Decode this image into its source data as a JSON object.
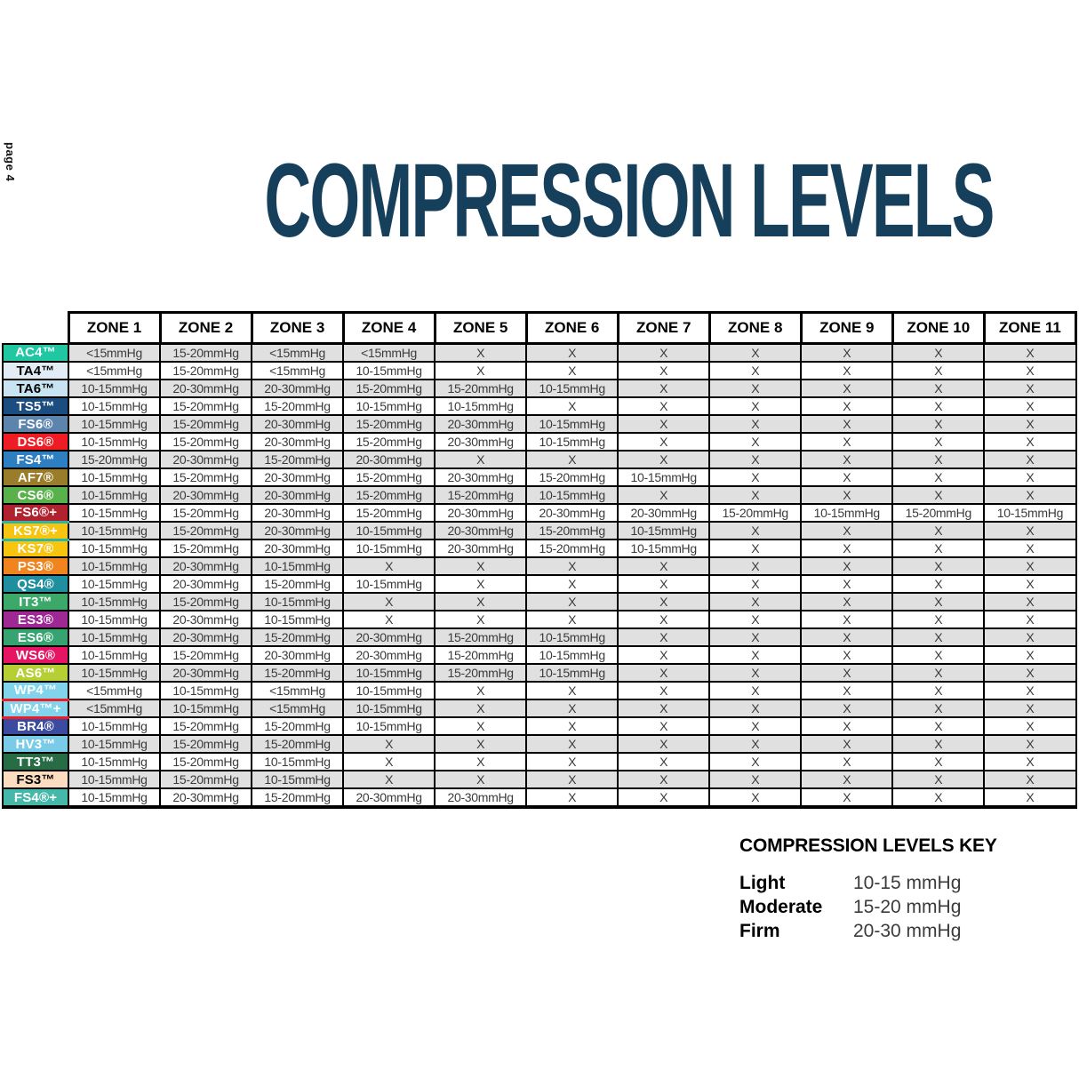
{
  "page_label": "page 4",
  "title": "COMPRESSION LEVELS",
  "colors": {
    "title": "#163F5C",
    "table_border": "#000000",
    "row_shade": "#E0E0E0",
    "cell_text": "#3B3B3B",
    "ks7plus_accent": "#2BB7A6",
    "wp4plus_accent": "#EE1C24"
  },
  "table": {
    "zone_headers": [
      "ZONE 1",
      "ZONE 2",
      "ZONE 3",
      "ZONE 4",
      "ZONE 5",
      "ZONE 6",
      "ZONE 7",
      "ZONE 8",
      "ZONE 9",
      "ZONE 10",
      "ZONE 11"
    ],
    "rows": [
      {
        "label": "AC4™",
        "bg": "#1FC7A3",
        "fg": "#FFFFFF",
        "accent": null,
        "values": [
          "<15mmHg",
          "15-20mmHg",
          "<15mmHg",
          "<15mmHg",
          "X",
          "X",
          "X",
          "X",
          "X",
          "X",
          "X"
        ]
      },
      {
        "label": "TA4™",
        "bg": "#E2ECF4",
        "fg": "#000000",
        "accent": null,
        "values": [
          "<15mmHg",
          "15-20mmHg",
          "<15mmHg",
          "10-15mmHg",
          "X",
          "X",
          "X",
          "X",
          "X",
          "X",
          "X"
        ]
      },
      {
        "label": "TA6™",
        "bg": "#C8E3F2",
        "fg": "#000000",
        "accent": null,
        "values": [
          "10-15mmHg",
          "20-30mmHg",
          "20-30mmHg",
          "15-20mmHg",
          "15-20mmHg",
          "10-15mmHg",
          "X",
          "X",
          "X",
          "X",
          "X"
        ]
      },
      {
        "label": "TS5™",
        "bg": "#1C4D80",
        "fg": "#FFFFFF",
        "accent": null,
        "values": [
          "10-15mmHg",
          "15-20mmHg",
          "15-20mmHg",
          "10-15mmHg",
          "10-15mmHg",
          "X",
          "X",
          "X",
          "X",
          "X",
          "X"
        ]
      },
      {
        "label": "FS6®",
        "bg": "#5C84AD",
        "fg": "#FFFFFF",
        "accent": null,
        "values": [
          "10-15mmHg",
          "15-20mmHg",
          "20-30mmHg",
          "15-20mmHg",
          "20-30mmHg",
          "10-15mmHg",
          "X",
          "X",
          "X",
          "X",
          "X"
        ]
      },
      {
        "label": "DS6®",
        "bg": "#EE1C24",
        "fg": "#FFFFFF",
        "accent": null,
        "values": [
          "10-15mmHg",
          "15-20mmHg",
          "20-30mmHg",
          "15-20mmHg",
          "20-30mmHg",
          "10-15mmHg",
          "X",
          "X",
          "X",
          "X",
          "X"
        ]
      },
      {
        "label": "FS4™",
        "bg": "#2E7FC2",
        "fg": "#FFFFFF",
        "accent": null,
        "values": [
          "15-20mmHg",
          "20-30mmHg",
          "15-20mmHg",
          "20-30mmHg",
          "X",
          "X",
          "X",
          "X",
          "X",
          "X",
          "X"
        ]
      },
      {
        "label": "AF7®",
        "bg": "#9A7D2A",
        "fg": "#FFFFFF",
        "accent": null,
        "values": [
          "10-15mmHg",
          "15-20mmHg",
          "20-30mmHg",
          "15-20mmHg",
          "20-30mmHg",
          "15-20mmHg",
          "10-15mmHg",
          "X",
          "X",
          "X",
          "X"
        ]
      },
      {
        "label": "CS6®",
        "bg": "#58B14B",
        "fg": "#FFFFFF",
        "accent": null,
        "values": [
          "10-15mmHg",
          "20-30mmHg",
          "20-30mmHg",
          "15-20mmHg",
          "15-20mmHg",
          "10-15mmHg",
          "X",
          "X",
          "X",
          "X",
          "X"
        ]
      },
      {
        "label": "FS6®+",
        "bg": "#B2212E",
        "fg": "#FFFFFF",
        "accent": null,
        "values": [
          "10-15mmHg",
          "15-20mmHg",
          "20-30mmHg",
          "15-20mmHg",
          "20-30mmHg",
          "20-30mmHg",
          "20-30mmHg",
          "15-20mmHg",
          "10-15mmHg",
          "15-20mmHg",
          "10-15mmHg"
        ]
      },
      {
        "label": "KS7®+",
        "bg": "#F7C40F",
        "fg": "#FFFFFF",
        "accent": "#2BB7A6",
        "values": [
          "10-15mmHg",
          "15-20mmHg",
          "20-30mmHg",
          "10-15mmHg",
          "20-30mmHg",
          "15-20mmHg",
          "10-15mmHg",
          "X",
          "X",
          "X",
          "X"
        ]
      },
      {
        "label": "KS7®",
        "bg": "#F7C40F",
        "fg": "#FFFFFF",
        "accent": null,
        "values": [
          "10-15mmHg",
          "15-20mmHg",
          "20-30mmHg",
          "10-15mmHg",
          "20-30mmHg",
          "15-20mmHg",
          "10-15mmHg",
          "X",
          "X",
          "X",
          "X"
        ]
      },
      {
        "label": "PS3®",
        "bg": "#F0841F",
        "fg": "#FFFFFF",
        "accent": null,
        "values": [
          "10-15mmHg",
          "20-30mmHg",
          "10-15mmHg",
          "X",
          "X",
          "X",
          "X",
          "X",
          "X",
          "X",
          "X"
        ]
      },
      {
        "label": "QS4®",
        "bg": "#1F8F9F",
        "fg": "#FFFFFF",
        "accent": null,
        "values": [
          "10-15mmHg",
          "20-30mmHg",
          "15-20mmHg",
          "10-15mmHg",
          "X",
          "X",
          "X",
          "X",
          "X",
          "X",
          "X"
        ]
      },
      {
        "label": "IT3™",
        "bg": "#3CA96B",
        "fg": "#FFFFFF",
        "accent": null,
        "values": [
          "10-15mmHg",
          "15-20mmHg",
          "10-15mmHg",
          "X",
          "X",
          "X",
          "X",
          "X",
          "X",
          "X",
          "X"
        ]
      },
      {
        "label": "ES3®",
        "bg": "#A02894",
        "fg": "#FFFFFF",
        "accent": null,
        "values": [
          "10-15mmHg",
          "20-30mmHg",
          "10-15mmHg",
          "X",
          "X",
          "X",
          "X",
          "X",
          "X",
          "X",
          "X"
        ]
      },
      {
        "label": "ES6®",
        "bg": "#36A470",
        "fg": "#FFFFFF",
        "accent": null,
        "values": [
          "10-15mmHg",
          "20-30mmHg",
          "15-20mmHg",
          "20-30mmHg",
          "15-20mmHg",
          "10-15mmHg",
          "X",
          "X",
          "X",
          "X",
          "X"
        ]
      },
      {
        "label": "WS6®",
        "bg": "#E51563",
        "fg": "#FFFFFF",
        "accent": null,
        "values": [
          "10-15mmHg",
          "15-20mmHg",
          "20-30mmHg",
          "20-30mmHg",
          "15-20mmHg",
          "10-15mmHg",
          "X",
          "X",
          "X",
          "X",
          "X"
        ]
      },
      {
        "label": "AS6™",
        "bg": "#B5CF34",
        "fg": "#FFFFFF",
        "accent": null,
        "values": [
          "10-15mmHg",
          "20-30mmHg",
          "15-20mmHg",
          "10-15mmHg",
          "15-20mmHg",
          "10-15mmHg",
          "X",
          "X",
          "X",
          "X",
          "X"
        ]
      },
      {
        "label": "WP4™",
        "bg": "#82D4EC",
        "fg": "#FFFFFF",
        "accent": null,
        "values": [
          "<15mmHg",
          "10-15mmHg",
          "<15mmHg",
          "10-15mmHg",
          "X",
          "X",
          "X",
          "X",
          "X",
          "X",
          "X"
        ]
      },
      {
        "label": "WP4™+",
        "bg": "#82D4EC",
        "fg": "#FFFFFF",
        "accent": "#EE1C24",
        "values": [
          "<15mmHg",
          "10-15mmHg",
          "<15mmHg",
          "10-15mmHg",
          "X",
          "X",
          "X",
          "X",
          "X",
          "X",
          "X"
        ]
      },
      {
        "label": "BR4®",
        "bg": "#3A4BA0",
        "fg": "#FFFFFF",
        "accent": null,
        "values": [
          "10-15mmHg",
          "15-20mmHg",
          "15-20mmHg",
          "10-15mmHg",
          "X",
          "X",
          "X",
          "X",
          "X",
          "X",
          "X"
        ]
      },
      {
        "label": "HV3™",
        "bg": "#79CBE8",
        "fg": "#FFFFFF",
        "accent": null,
        "values": [
          "10-15mmHg",
          "15-20mmHg",
          "15-20mmHg",
          "X",
          "X",
          "X",
          "X",
          "X",
          "X",
          "X",
          "X"
        ]
      },
      {
        "label": "TT3™",
        "bg": "#276C44",
        "fg": "#FFFFFF",
        "accent": null,
        "values": [
          "10-15mmHg",
          "15-20mmHg",
          "10-15mmHg",
          "X",
          "X",
          "X",
          "X",
          "X",
          "X",
          "X",
          "X"
        ]
      },
      {
        "label": "FS3™",
        "bg": "#FBDCC1",
        "fg": "#000000",
        "accent": null,
        "values": [
          "10-15mmHg",
          "15-20mmHg",
          "10-15mmHg",
          "X",
          "X",
          "X",
          "X",
          "X",
          "X",
          "X",
          "X"
        ]
      },
      {
        "label": "FS4®+",
        "bg": "#45B8A9",
        "fg": "#FFFFFF",
        "accent": null,
        "values": [
          "10-15mmHg",
          "20-30mmHg",
          "15-20mmHg",
          "20-30mmHg",
          "20-30mmHg",
          "X",
          "X",
          "X",
          "X",
          "X",
          "X"
        ]
      }
    ]
  },
  "key": {
    "title": "COMPRESSION LEVELS KEY",
    "entries": [
      {
        "label": "Light",
        "value": "10-15 mmHg"
      },
      {
        "label": "Moderate",
        "value": "15-20 mmHg"
      },
      {
        "label": "Firm",
        "value": "20-30 mmHg"
      }
    ]
  }
}
